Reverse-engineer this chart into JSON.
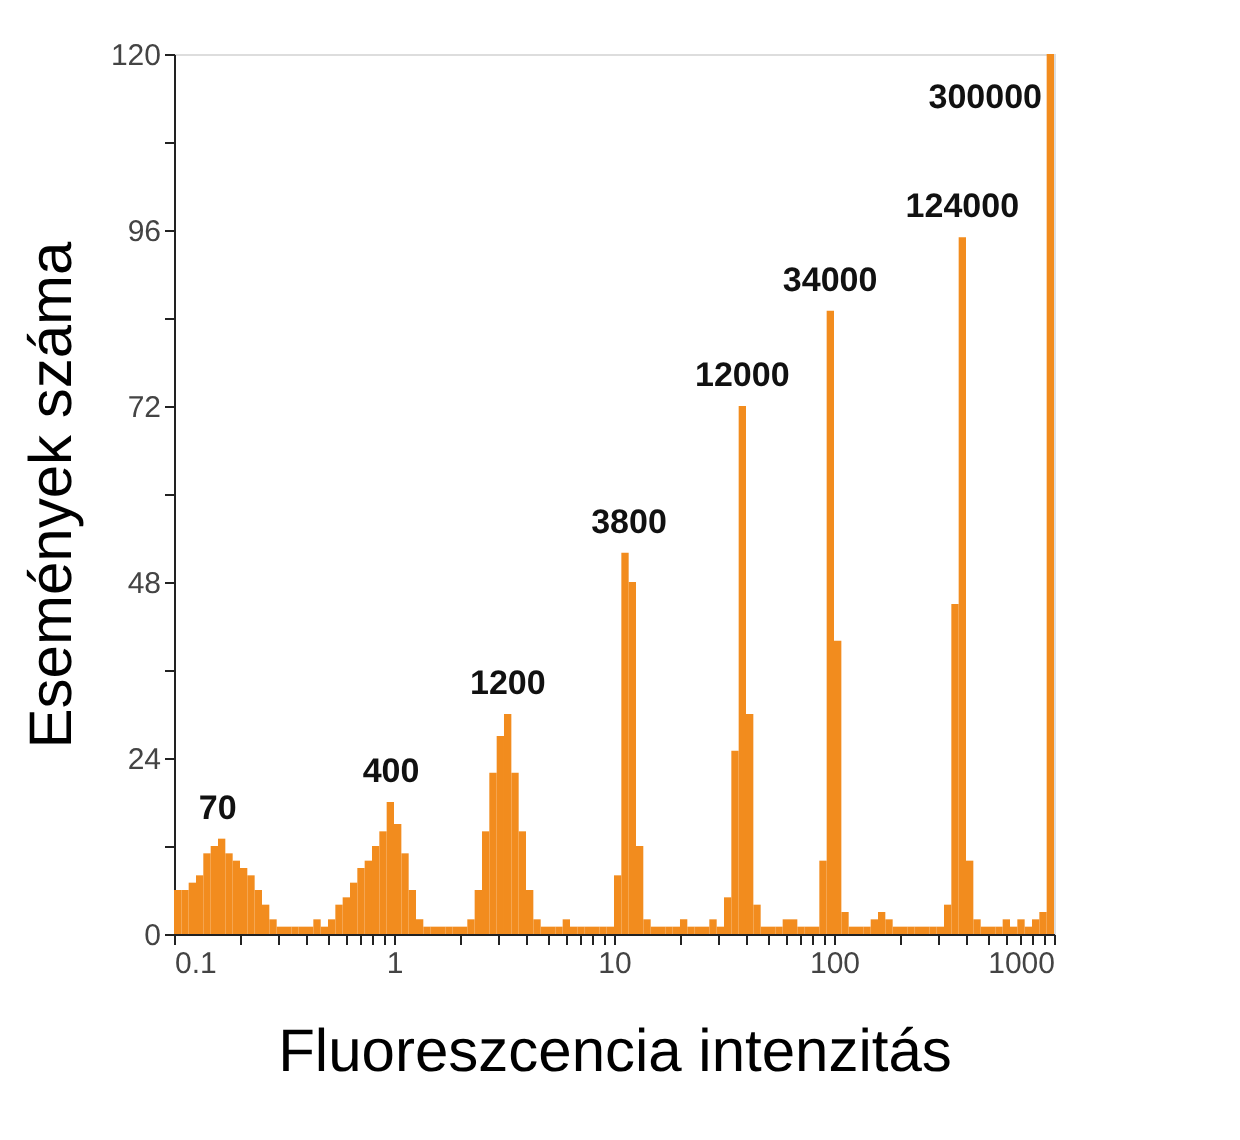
{
  "chart_data": {
    "type": "histogram",
    "xlabel": "Fluoreszcencia intenzitás",
    "ylabel": "Események száma",
    "log": "x",
    "color": "#f28c1e",
    "bins": [
      0.1,
      0.108,
      0.1166,
      0.1259,
      0.1359,
      0.1468,
      0.1585,
      0.1711,
      0.1848,
      0.1995,
      0.2154,
      0.2326,
      0.2512,
      0.2712,
      0.2929,
      0.3162,
      0.3415,
      0.3687,
      0.3981,
      0.4299,
      0.4642,
      0.5012,
      0.5412,
      0.5843,
      0.631,
      0.6813,
      0.7356,
      0.7943,
      0.8577,
      0.9261,
      1,
      1.08,
      1.166,
      1.259,
      1.359,
      1.468,
      1.585,
      1.711,
      1.848,
      1.995,
      2.154,
      2.326,
      2.512,
      2.712,
      2.929,
      3.162,
      3.415,
      3.687,
      3.981,
      4.299,
      4.642,
      5.012,
      5.412,
      5.843,
      6.31,
      6.813,
      7.356,
      7.943,
      8.577,
      9.261,
      10,
      10.8,
      11.66,
      12.59,
      13.59,
      14.68,
      15.85,
      17.11,
      18.48,
      19.95,
      21.54,
      23.26,
      25.12,
      27.12,
      29.29,
      31.62,
      34.15,
      36.87,
      39.81,
      42.99,
      46.42,
      50.12,
      54.12,
      58.43,
      63.1,
      68.13,
      73.56,
      79.43,
      85.77,
      92.61,
      100,
      108,
      116.6,
      125.9,
      135.9,
      146.8,
      158.5,
      171.1,
      184.8,
      199.5,
      215.4,
      232.6,
      251.2,
      271.2,
      292.9,
      316.2,
      341.5,
      368.7,
      398.1,
      429.9,
      464.2,
      501.2,
      541.2,
      584.3,
      631,
      681.3,
      735.6,
      794.3,
      857.7,
      926.1,
      1000
    ],
    "values": [
      6,
      6,
      7,
      8,
      11,
      12,
      13,
      11,
      10,
      9,
      8,
      6,
      4,
      2,
      1,
      1,
      1,
      1,
      1,
      2,
      1,
      2,
      4,
      5,
      7,
      9,
      10,
      12,
      14,
      18,
      15,
      11,
      6,
      2,
      1,
      1,
      1,
      1,
      1,
      1,
      2,
      6,
      14,
      22,
      27,
      30,
      22,
      14,
      6,
      2,
      1,
      1,
      1,
      2,
      1,
      1,
      1,
      1,
      1,
      1,
      8,
      52,
      48,
      12,
      2,
      1,
      1,
      1,
      1,
      2,
      1,
      1,
      1,
      2,
      1,
      5,
      25,
      72,
      30,
      4,
      1,
      1,
      1,
      2,
      2,
      1,
      1,
      1,
      10,
      85,
      40,
      3,
      1,
      1,
      1,
      2,
      3,
      2,
      1,
      1,
      1,
      1,
      1,
      1,
      1,
      4,
      45,
      95,
      10,
      2,
      1,
      1,
      1,
      2,
      1,
      2,
      1,
      2,
      3,
      120
    ],
    "xlim": [
      0.1,
      1000
    ],
    "xticks": [
      0.1,
      {
        "value": 0.2,
        "label": null
      },
      {
        "value": 0.3,
        "label": null
      },
      {
        "value": 0.4,
        "label": null
      },
      {
        "value": 0.5,
        "label": null
      },
      {
        "value": 0.6,
        "label": null
      },
      {
        "value": 0.7,
        "label": null
      },
      {
        "value": 0.8,
        "label": null
      },
      {
        "value": 0.9,
        "label": null
      },
      1,
      {
        "value": 2,
        "label": null
      },
      {
        "value": 3,
        "label": null
      },
      {
        "value": 4,
        "label": null
      },
      {
        "value": 5,
        "label": null
      },
      {
        "value": 6,
        "label": null
      },
      {
        "value": 7,
        "label": null
      },
      {
        "value": 8,
        "label": null
      },
      {
        "value": 9,
        "label": null
      },
      10,
      {
        "value": 20,
        "label": null
      },
      {
        "value": 30,
        "label": null
      },
      {
        "value": 40,
        "label": null
      },
      {
        "value": 50,
        "label": null
      },
      {
        "value": 60,
        "label": null
      },
      {
        "value": 70,
        "label": null
      },
      {
        "value": 80,
        "label": null
      },
      {
        "value": 90,
        "label": null
      },
      100,
      {
        "value": 200,
        "label": null
      },
      {
        "value": 300,
        "label": null
      },
      {
        "value": 400,
        "label": null
      },
      {
        "value": 500,
        "label": null
      },
      {
        "value": 600,
        "label": null
      },
      {
        "value": 700,
        "label": null
      },
      {
        "value": 800,
        "label": null
      },
      {
        "value": 900,
        "label": null
      },
      1000
    ],
    "ylim": [
      0,
      120
    ],
    "yticks": [
      0,
      {
        "value": 12,
        "label": null
      },
      24,
      {
        "value": 36,
        "label": null
      },
      48,
      {
        "value": 60,
        "label": null
      },
      72,
      {
        "value": 84,
        "label": null
      },
      96,
      {
        "value": 108,
        "label": null
      },
      120
    ],
    "annotations": [
      {
        "text": "70",
        "x": 0.158,
        "y": 13
      },
      {
        "text": "400",
        "x": 0.97,
        "y": 18
      },
      {
        "text": "1200",
        "x": 3.29,
        "y": 30
      },
      {
        "text": "3800",
        "x": 11.7,
        "y": 52
      },
      {
        "text": "12000",
        "x": 38.3,
        "y": 72
      },
      {
        "text": "34000",
        "x": 96,
        "y": 85
      },
      {
        "text": "124000",
        "x": 383,
        "y": 95
      },
      {
        "text": "300000",
        "x": 1000,
        "y": 120
      }
    ]
  }
}
